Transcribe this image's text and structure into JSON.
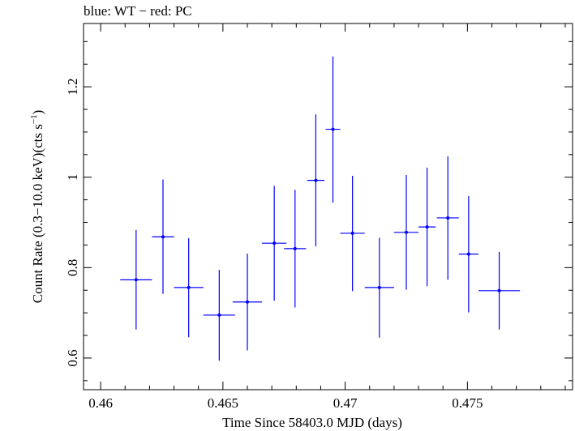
{
  "chart_data": {
    "type": "scatter",
    "title": "blue: WT − red: PC",
    "xlabel": "Time Since 58403.0 MJD (days)",
    "ylabel_main": "Count Rate (0.3−10.0 keV)(cts s",
    "ylabel_sup": "−1",
    "ylabel_close": ")",
    "xlim": [
      0.4593,
      0.4793
    ],
    "ylim": [
      0.53,
      1.34
    ],
    "xticks": [
      0.46,
      0.465,
      0.47,
      0.475
    ],
    "xtick_labels": [
      "0.46",
      "0.465",
      "0.47",
      "0.475"
    ],
    "yticks": [
      0.6,
      0.8,
      1.0,
      1.2
    ],
    "ytick_labels": [
      "0.6",
      "0.8",
      "1",
      "1.2"
    ],
    "grid": false,
    "series": [
      {
        "name": "WT",
        "color": "#0000ff",
        "points": [
          {
            "x": 0.46145,
            "xerr": 0.00065,
            "y": 0.773,
            "ylo": 0.663,
            "yhi": 0.883
          },
          {
            "x": 0.46255,
            "xerr": 0.00045,
            "y": 0.868,
            "ylo": 0.742,
            "yhi": 0.995
          },
          {
            "x": 0.4636,
            "xerr": 0.0006,
            "y": 0.756,
            "ylo": 0.646,
            "yhi": 0.865
          },
          {
            "x": 0.46485,
            "xerr": 0.00065,
            "y": 0.695,
            "ylo": 0.594,
            "yhi": 0.795
          },
          {
            "x": 0.466,
            "xerr": 0.0006,
            "y": 0.724,
            "ylo": 0.617,
            "yhi": 0.831
          },
          {
            "x": 0.4671,
            "xerr": 0.0005,
            "y": 0.854,
            "ylo": 0.727,
            "yhi": 0.981
          },
          {
            "x": 0.46795,
            "xerr": 0.00045,
            "y": 0.842,
            "ylo": 0.712,
            "yhi": 0.972
          },
          {
            "x": 0.4688,
            "xerr": 0.00035,
            "y": 0.993,
            "ylo": 0.847,
            "yhi": 1.139
          },
          {
            "x": 0.4695,
            "xerr": 0.0003,
            "y": 1.106,
            "ylo": 0.944,
            "yhi": 1.267
          },
          {
            "x": 0.4703,
            "xerr": 0.0005,
            "y": 0.876,
            "ylo": 0.748,
            "yhi": 1.003
          },
          {
            "x": 0.4714,
            "xerr": 0.0006,
            "y": 0.756,
            "ylo": 0.645,
            "yhi": 0.866
          },
          {
            "x": 0.4725,
            "xerr": 0.0005,
            "y": 0.878,
            "ylo": 0.751,
            "yhi": 1.005
          },
          {
            "x": 0.47335,
            "xerr": 0.00035,
            "y": 0.89,
            "ylo": 0.759,
            "yhi": 1.021
          },
          {
            "x": 0.4742,
            "xerr": 0.00045,
            "y": 0.91,
            "ylo": 0.773,
            "yhi": 1.046
          },
          {
            "x": 0.47505,
            "xerr": 0.0004,
            "y": 0.83,
            "ylo": 0.701,
            "yhi": 0.958
          },
          {
            "x": 0.4763,
            "xerr": 0.00085,
            "y": 0.749,
            "ylo": 0.663,
            "yhi": 0.835
          }
        ]
      }
    ]
  }
}
